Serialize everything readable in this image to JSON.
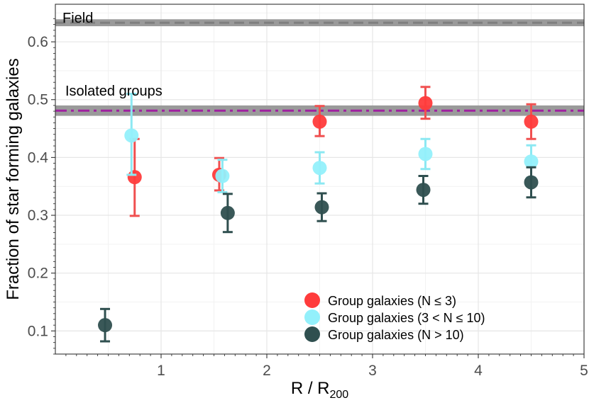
{
  "chart_data": {
    "type": "scatter",
    "xlabel": "R / R",
    "xlabel_subscript": "200",
    "ylabel": "Fraction of star forming galaxies",
    "xlim": [
      0,
      5
    ],
    "ylim": [
      0.06,
      0.665
    ],
    "x_ticks": [
      1,
      2,
      3,
      4,
      5
    ],
    "x_tick_labels": [
      "1",
      "2",
      "3",
      "4",
      "5"
    ],
    "y_ticks": [
      0.1,
      0.2,
      0.3,
      0.4,
      0.5,
      0.6
    ],
    "y_tick_labels": [
      "0.1",
      "0.2",
      "0.3",
      "0.4",
      "0.5",
      "0.6"
    ],
    "grid": true,
    "legend_position": "bottom-right",
    "reference_lines": [
      {
        "name": "Field",
        "label": "Field",
        "value": 0.633,
        "band": [
          0.627,
          0.639
        ],
        "line_style": "dashed",
        "color": "#7f7f7f"
      },
      {
        "name": "Isolated groups",
        "label": "Isolated groups",
        "value": 0.481,
        "band": [
          0.472,
          0.49
        ],
        "line_style": "dash-dot",
        "color": "#a020a0"
      }
    ],
    "series": [
      {
        "name": "Group galaxies (N ≤ 3)",
        "color": "#ff3b3b",
        "errorbar_color": "#f05050",
        "x": [
          0.75,
          1.55,
          2.5,
          3.5,
          4.5
        ],
        "y": [
          0.366,
          0.37,
          0.462,
          0.494,
          0.462
        ],
        "err_low": [
          0.067,
          0.027,
          0.025,
          0.027,
          0.03
        ],
        "err_high": [
          0.066,
          0.029,
          0.027,
          0.028,
          0.03
        ]
      },
      {
        "name": "Group galaxies (3 < N ≤ 10)",
        "color": "#93f0fb",
        "errorbar_color": "#8ce8f2",
        "x": [
          0.72,
          1.58,
          2.5,
          3.5,
          4.5
        ],
        "y": [
          0.438,
          0.368,
          0.382,
          0.406,
          0.393
        ],
        "err_low": [
          0.068,
          0.028,
          0.027,
          0.026,
          0.028
        ],
        "err_high": [
          0.072,
          0.028,
          0.027,
          0.026,
          0.028
        ]
      },
      {
        "name": "Group galaxies (N > 10)",
        "color": "#2f4f4f",
        "errorbar_color": "#2f4f4f",
        "x": [
          0.47,
          1.63,
          2.52,
          3.48,
          4.5
        ],
        "y": [
          0.11,
          0.304,
          0.314,
          0.344,
          0.357
        ],
        "err_low": [
          0.028,
          0.033,
          0.024,
          0.024,
          0.026
        ],
        "err_high": [
          0.028,
          0.033,
          0.024,
          0.024,
          0.026
        ]
      }
    ]
  }
}
